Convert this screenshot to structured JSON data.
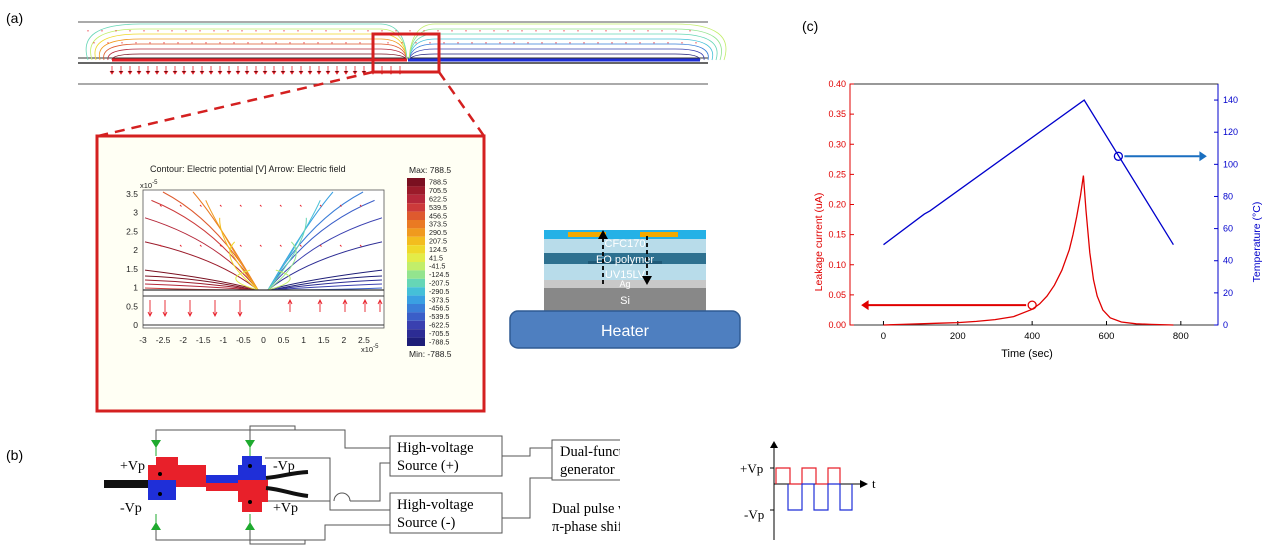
{
  "panels": {
    "a": "(a)",
    "b": "(b)",
    "c": "(c)"
  },
  "simulation": {
    "title": "Contour: Electric potential [V]   Arrow: Electric field",
    "max_label": "Max: 788.5",
    "min_label": "Min: -788.5",
    "x_exponent": "x10",
    "y_exponent": "x10",
    "exp_power": "-5",
    "colorbar_values": [
      "788.5",
      "705.5",
      "622.5",
      "539.5",
      "456.5",
      "373.5",
      "290.5",
      "207.5",
      "124.5",
      "41.5",
      "-41.5",
      "-124.5",
      "-207.5",
      "-290.5",
      "-373.5",
      "-456.5",
      "-539.5",
      "-622.5",
      "-705.5",
      "-788.5"
    ],
    "colorbar_colors": [
      "#7a1020",
      "#9b1b2a",
      "#b5283a",
      "#cc3a3a",
      "#de5a2e",
      "#ea7a22",
      "#f09a1e",
      "#f3bd1e",
      "#efd92a",
      "#e3ec48",
      "#c2ee6a",
      "#93e48e",
      "#66d6b6",
      "#45c0d8",
      "#3aa0e2",
      "#3a7ed8",
      "#3a5ec8",
      "#3a40b0",
      "#2c2c94",
      "#1e1e78"
    ],
    "x_ticks": [
      "-3",
      "-2.5",
      "-2",
      "-1.5",
      "-1",
      "-0.5",
      "0",
      "0.5",
      "1",
      "1.5",
      "2",
      "2.5"
    ],
    "y_ticks": [
      "3.5",
      "3",
      "2.5",
      "2",
      "1.5",
      "1",
      "0.5",
      "0"
    ]
  },
  "stack": {
    "layers": [
      "CFC170",
      "EO polymer",
      "UV15LV",
      "Ag",
      "Si"
    ],
    "heater": "Heater"
  },
  "poling": {
    "hv_plus": [
      "High-voltage",
      "Source (+)"
    ],
    "hv_minus": [
      "High-voltage",
      "Source (-)"
    ],
    "generator": [
      "Dual-function",
      "generator"
    ],
    "pulse_caption": [
      "Dual pulse with",
      "π-phase shift"
    ],
    "vp_plus": "+Vp",
    "vp_minus": "-Vp",
    "pulse_vp_plus": "+Vp",
    "pulse_vp_minus": "-Vp",
    "pulse_t": "t"
  },
  "chart_data": {
    "type": "line",
    "xlabel": "Time (sec)",
    "ylabel_left": "Leakage current (uA)",
    "ylabel_right": "Temperature (°C)",
    "xlim": [
      -90,
      900
    ],
    "ylim_left": [
      0,
      0.4
    ],
    "ylim_right": [
      0,
      150
    ],
    "x_ticks": [
      "0",
      "200",
      "400",
      "600",
      "800"
    ],
    "y_left_ticks": [
      "0.00",
      "0.05",
      "0.10",
      "0.15",
      "0.20",
      "0.25",
      "0.30",
      "0.35",
      "0.40"
    ],
    "y_right_ticks": [
      "0",
      "20",
      "40",
      "60",
      "80",
      "100",
      "120",
      "140"
    ],
    "series": [
      {
        "axis": "left",
        "color": "#e00000",
        "x": [
          0,
          50,
          100,
          150,
          200,
          250,
          300,
          350,
          400,
          420,
          440,
          460,
          480,
          500,
          510,
          520,
          530,
          538,
          545,
          555,
          565,
          575,
          590,
          610,
          640,
          680,
          720,
          780
        ],
        "y": [
          0.0,
          0.001,
          0.002,
          0.003,
          0.004,
          0.006,
          0.009,
          0.014,
          0.026,
          0.035,
          0.048,
          0.066,
          0.091,
          0.125,
          0.15,
          0.18,
          0.215,
          0.248,
          0.19,
          0.12,
          0.075,
          0.048,
          0.025,
          0.012,
          0.005,
          0.002,
          0.001,
          0.0
        ]
      },
      {
        "axis": "right",
        "color": "#0000cc",
        "x": [
          0,
          110,
          125,
          540,
          780
        ],
        "y": [
          50,
          69,
          71,
          140,
          50
        ]
      }
    ]
  },
  "colors": {
    "red_electrode": "#e8202a",
    "blue_electrode": "#1f2fd8",
    "frame_red": "#d42020",
    "heater": "#4e7fc0",
    "current": "#e00000",
    "temperature": "#0000cc",
    "arrow_blue": "#1a6fc0"
  }
}
